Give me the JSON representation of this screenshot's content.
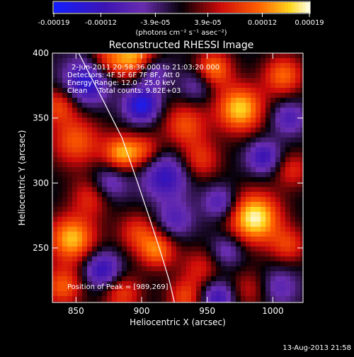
{
  "chart_data": {
    "type": "heatmap",
    "title": "Reconstructed RHESSI Image",
    "xlabel": "Heliocentric X (arcsec)",
    "ylabel": "Heliocentric Y (arcsec)",
    "xlim": [
      832,
      1023
    ],
    "ylim": [
      208,
      400
    ],
    "xticks": [
      850,
      900,
      950,
      1000
    ],
    "yticks": [
      250,
      300,
      350,
      400
    ],
    "colorbar": {
      "unit_label": "(photons cm⁻² s⁻¹ asec⁻²)",
      "tick_labels": [
        "-0.00019",
        "-0.00012",
        "-3.9e-05",
        "3.9e-05",
        "0.00012",
        "0.00019"
      ],
      "range": [
        -0.00019,
        0.00019
      ]
    },
    "annotations": [
      "2-Jun-2011 20:58:36.000 to 21:03:20.000",
      "Detectors: 4F 5F 6F 7F 8F, Att 0",
      "Energy Range: 12.0 - 25.0 keV",
      "Clean     Total counts: 9.82E+03"
    ],
    "peak_label": "Position of Peak = [989,269]",
    "limb_curve": [
      [
        852,
        400
      ],
      [
        870,
        365
      ],
      [
        885,
        335
      ],
      [
        897,
        300
      ],
      [
        907,
        270
      ],
      [
        915,
        245
      ],
      [
        921,
        225
      ],
      [
        925,
        208
      ]
    ],
    "blobs": [
      {
        "x": 895,
        "y": 397,
        "sigma": 12,
        "amp": 0.95
      },
      {
        "x": 873,
        "y": 395,
        "sigma": 10,
        "amp": 0.55
      },
      {
        "x": 858,
        "y": 378,
        "sigma": 12,
        "amp": -0.9
      },
      {
        "x": 850,
        "y": 332,
        "sigma": 14,
        "amp": 0.7
      },
      {
        "x": 837,
        "y": 360,
        "sigma": 10,
        "amp": 0.6
      },
      {
        "x": 885,
        "y": 323,
        "sigma": 10,
        "amp": 0.9
      },
      {
        "x": 903,
        "y": 325,
        "sigma": 9,
        "amp": 0.5
      },
      {
        "x": 900,
        "y": 360,
        "sigma": 9,
        "amp": -1.0
      },
      {
        "x": 908,
        "y": 385,
        "sigma": 9,
        "amp": -0.6
      },
      {
        "x": 918,
        "y": 305,
        "sigma": 12,
        "amp": -0.75
      },
      {
        "x": 875,
        "y": 300,
        "sigma": 10,
        "amp": -0.55
      },
      {
        "x": 933,
        "y": 345,
        "sigma": 12,
        "amp": 0.65
      },
      {
        "x": 945,
        "y": 318,
        "sigma": 11,
        "amp": 0.55
      },
      {
        "x": 955,
        "y": 388,
        "sigma": 10,
        "amp": 0.8
      },
      {
        "x": 942,
        "y": 375,
        "sigma": 9,
        "amp": -0.4
      },
      {
        "x": 975,
        "y": 357,
        "sigma": 13,
        "amp": 1.05
      },
      {
        "x": 1008,
        "y": 383,
        "sigma": 11,
        "amp": 0.75
      },
      {
        "x": 1012,
        "y": 350,
        "sigma": 9,
        "amp": -0.55
      },
      {
        "x": 993,
        "y": 320,
        "sigma": 9,
        "amp": -0.7
      },
      {
        "x": 1015,
        "y": 310,
        "sigma": 10,
        "amp": 0.5
      },
      {
        "x": 986,
        "y": 273,
        "sigma": 14,
        "amp": 1.2
      },
      {
        "x": 960,
        "y": 285,
        "sigma": 9,
        "amp": -0.6
      },
      {
        "x": 1012,
        "y": 252,
        "sigma": 10,
        "amp": 0.55
      },
      {
        "x": 847,
        "y": 257,
        "sigma": 13,
        "amp": 1.0
      },
      {
        "x": 862,
        "y": 290,
        "sigma": 11,
        "amp": 0.55
      },
      {
        "x": 840,
        "y": 220,
        "sigma": 11,
        "amp": 0.7
      },
      {
        "x": 870,
        "y": 233,
        "sigma": 10,
        "amp": -0.8
      },
      {
        "x": 897,
        "y": 262,
        "sigma": 11,
        "amp": 0.55
      },
      {
        "x": 912,
        "y": 248,
        "sigma": 10,
        "amp": 0.75
      },
      {
        "x": 885,
        "y": 215,
        "sigma": 11,
        "amp": 0.6
      },
      {
        "x": 925,
        "y": 272,
        "sigma": 10,
        "amp": -0.5
      },
      {
        "x": 945,
        "y": 235,
        "sigma": 11,
        "amp": 0.45
      },
      {
        "x": 933,
        "y": 212,
        "sigma": 10,
        "amp": 0.6
      },
      {
        "x": 958,
        "y": 212,
        "sigma": 9,
        "amp": -0.7
      },
      {
        "x": 982,
        "y": 218,
        "sigma": 11,
        "amp": 0.4
      },
      {
        "x": 1005,
        "y": 220,
        "sigma": 10,
        "amp": -0.45
      },
      {
        "x": 965,
        "y": 248,
        "sigma": 9,
        "amp": -0.45
      }
    ]
  },
  "footer_timestamp": "13-Aug-2013 21:58"
}
